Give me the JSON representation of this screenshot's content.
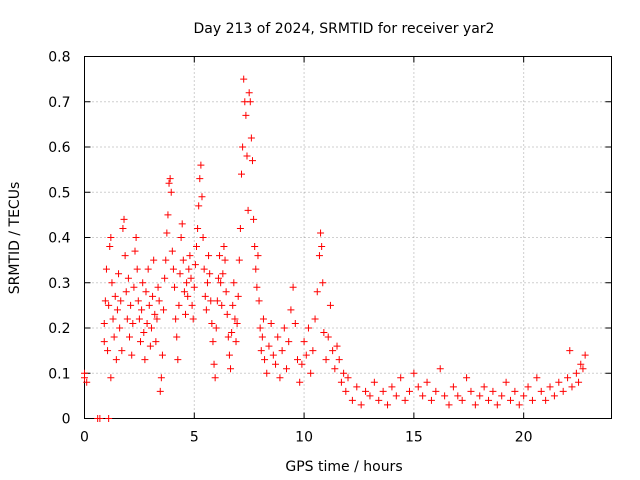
{
  "chart_data": {
    "type": "scatter",
    "title": "Day 213 of 2024, SRMTID for receiver yar2",
    "xlabel": "GPS time / hours",
    "ylabel": "SRMTID / TECUs",
    "xlim": [
      0,
      24
    ],
    "ylim": [
      0,
      0.8
    ],
    "x_ticks": [
      "0",
      "5",
      "10",
      "15",
      "20"
    ],
    "y_ticks": [
      "0",
      "0.1",
      "0.2",
      "0.3",
      "0.4",
      "0.5",
      "0.6",
      "0.7",
      "0.8"
    ],
    "grid": true,
    "marker": "+",
    "color": "#ff0000",
    "series": [
      {
        "name": "SRMTID",
        "points": [
          [
            0.0,
            0.1
          ],
          [
            0.0,
            0.09
          ],
          [
            0.1,
            0.08
          ],
          [
            0.6,
            0.0
          ],
          [
            0.7,
            0.0
          ],
          [
            1.1,
            0.0
          ],
          [
            0.9,
            0.17
          ],
          [
            0.9,
            0.21
          ],
          [
            0.95,
            0.26
          ],
          [
            1.0,
            0.33
          ],
          [
            1.05,
            0.15
          ],
          [
            1.1,
            0.25
          ],
          [
            1.15,
            0.38
          ],
          [
            1.2,
            0.4
          ],
          [
            1.2,
            0.09
          ],
          [
            1.25,
            0.3
          ],
          [
            1.3,
            0.22
          ],
          [
            1.35,
            0.18
          ],
          [
            1.4,
            0.27
          ],
          [
            1.45,
            0.13
          ],
          [
            1.5,
            0.24
          ],
          [
            1.55,
            0.32
          ],
          [
            1.6,
            0.2
          ],
          [
            1.65,
            0.26
          ],
          [
            1.7,
            0.15
          ],
          [
            1.75,
            0.42
          ],
          [
            1.8,
            0.44
          ],
          [
            1.85,
            0.36
          ],
          [
            1.9,
            0.28
          ],
          [
            1.95,
            0.22
          ],
          [
            2.0,
            0.31
          ],
          [
            2.05,
            0.18
          ],
          [
            2.1,
            0.25
          ],
          [
            2.15,
            0.14
          ],
          [
            2.2,
            0.21
          ],
          [
            2.25,
            0.29
          ],
          [
            2.3,
            0.37
          ],
          [
            2.35,
            0.4
          ],
          [
            2.4,
            0.33
          ],
          [
            2.45,
            0.26
          ],
          [
            2.5,
            0.22
          ],
          [
            2.55,
            0.17
          ],
          [
            2.6,
            0.24
          ],
          [
            2.65,
            0.3
          ],
          [
            2.7,
            0.19
          ],
          [
            2.75,
            0.13
          ],
          [
            2.8,
            0.28
          ],
          [
            2.85,
            0.21
          ],
          [
            2.9,
            0.33
          ],
          [
            2.95,
            0.25
          ],
          [
            3.0,
            0.16
          ],
          [
            3.05,
            0.2
          ],
          [
            3.1,
            0.27
          ],
          [
            3.15,
            0.35
          ],
          [
            3.2,
            0.23
          ],
          [
            3.25,
            0.17
          ],
          [
            3.3,
            0.22
          ],
          [
            3.35,
            0.29
          ],
          [
            3.4,
            0.26
          ],
          [
            3.45,
            0.06
          ],
          [
            3.5,
            0.09
          ],
          [
            3.55,
            0.14
          ],
          [
            3.6,
            0.24
          ],
          [
            3.65,
            0.31
          ],
          [
            3.7,
            0.35
          ],
          [
            3.75,
            0.41
          ],
          [
            3.8,
            0.45
          ],
          [
            3.85,
            0.52
          ],
          [
            3.9,
            0.53
          ],
          [
            3.95,
            0.5
          ],
          [
            4.0,
            0.37
          ],
          [
            4.05,
            0.33
          ],
          [
            4.1,
            0.29
          ],
          [
            4.15,
            0.22
          ],
          [
            4.2,
            0.18
          ],
          [
            4.25,
            0.13
          ],
          [
            4.3,
            0.25
          ],
          [
            4.35,
            0.32
          ],
          [
            4.4,
            0.4
          ],
          [
            4.45,
            0.43
          ],
          [
            4.5,
            0.35
          ],
          [
            4.55,
            0.28
          ],
          [
            4.6,
            0.23
          ],
          [
            4.65,
            0.3
          ],
          [
            4.7,
            0.27
          ],
          [
            4.75,
            0.33
          ],
          [
            4.8,
            0.36
          ],
          [
            4.85,
            0.31
          ],
          [
            4.9,
            0.25
          ],
          [
            4.95,
            0.22
          ],
          [
            5.0,
            0.29
          ],
          [
            5.05,
            0.34
          ],
          [
            5.1,
            0.38
          ],
          [
            5.15,
            0.42
          ],
          [
            5.2,
            0.47
          ],
          [
            5.25,
            0.53
          ],
          [
            5.3,
            0.56
          ],
          [
            5.35,
            0.49
          ],
          [
            5.4,
            0.4
          ],
          [
            5.45,
            0.33
          ],
          [
            5.5,
            0.27
          ],
          [
            5.55,
            0.24
          ],
          [
            5.6,
            0.3
          ],
          [
            5.65,
            0.36
          ],
          [
            5.7,
            0.32
          ],
          [
            5.75,
            0.26
          ],
          [
            5.8,
            0.21
          ],
          [
            5.85,
            0.17
          ],
          [
            5.9,
            0.12
          ],
          [
            5.95,
            0.09
          ],
          [
            6.0,
            0.2
          ],
          [
            6.05,
            0.26
          ],
          [
            6.1,
            0.31
          ],
          [
            6.15,
            0.36
          ],
          [
            6.2,
            0.3
          ],
          [
            6.25,
            0.25
          ],
          [
            6.3,
            0.32
          ],
          [
            6.35,
            0.38
          ],
          [
            6.4,
            0.35
          ],
          [
            6.45,
            0.28
          ],
          [
            6.5,
            0.23
          ],
          [
            6.55,
            0.18
          ],
          [
            6.6,
            0.14
          ],
          [
            6.65,
            0.11
          ],
          [
            6.7,
            0.19
          ],
          [
            6.75,
            0.25
          ],
          [
            6.8,
            0.3
          ],
          [
            6.85,
            0.22
          ],
          [
            6.9,
            0.17
          ],
          [
            6.95,
            0.21
          ],
          [
            7.0,
            0.27
          ],
          [
            7.05,
            0.35
          ],
          [
            7.1,
            0.42
          ],
          [
            7.15,
            0.54
          ],
          [
            7.2,
            0.6
          ],
          [
            7.25,
            0.75
          ],
          [
            7.3,
            0.7
          ],
          [
            7.35,
            0.67
          ],
          [
            7.4,
            0.58
          ],
          [
            7.45,
            0.46
          ],
          [
            7.5,
            0.72
          ],
          [
            7.55,
            0.7
          ],
          [
            7.6,
            0.62
          ],
          [
            7.65,
            0.57
          ],
          [
            7.7,
            0.44
          ],
          [
            7.75,
            0.38
          ],
          [
            7.8,
            0.33
          ],
          [
            7.85,
            0.29
          ],
          [
            7.9,
            0.36
          ],
          [
            7.95,
            0.26
          ],
          [
            8.0,
            0.2
          ],
          [
            8.05,
            0.15
          ],
          [
            8.1,
            0.18
          ],
          [
            8.15,
            0.22
          ],
          [
            8.2,
            0.13
          ],
          [
            8.3,
            0.1
          ],
          [
            8.4,
            0.16
          ],
          [
            8.5,
            0.21
          ],
          [
            8.6,
            0.14
          ],
          [
            8.7,
            0.12
          ],
          [
            8.8,
            0.18
          ],
          [
            8.9,
            0.09
          ],
          [
            9.0,
            0.15
          ],
          [
            9.1,
            0.2
          ],
          [
            9.2,
            0.11
          ],
          [
            9.3,
            0.17
          ],
          [
            9.4,
            0.24
          ],
          [
            9.5,
            0.29
          ],
          [
            9.6,
            0.21
          ],
          [
            9.7,
            0.13
          ],
          [
            9.8,
            0.08
          ],
          [
            9.9,
            0.12
          ],
          [
            10.0,
            0.17
          ],
          [
            10.1,
            0.14
          ],
          [
            10.2,
            0.2
          ],
          [
            10.3,
            0.1
          ],
          [
            10.4,
            0.15
          ],
          [
            10.5,
            0.22
          ],
          [
            10.6,
            0.28
          ],
          [
            10.7,
            0.36
          ],
          [
            10.75,
            0.41
          ],
          [
            10.8,
            0.38
          ],
          [
            10.85,
            0.3
          ],
          [
            10.9,
            0.19
          ],
          [
            11.0,
            0.13
          ],
          [
            11.1,
            0.18
          ],
          [
            11.2,
            0.25
          ],
          [
            11.3,
            0.15
          ],
          [
            11.4,
            0.11
          ],
          [
            11.5,
            0.16
          ],
          [
            11.6,
            0.13
          ],
          [
            11.7,
            0.08
          ],
          [
            11.8,
            0.1
          ],
          [
            11.9,
            0.06
          ],
          [
            12.0,
            0.09
          ],
          [
            12.2,
            0.04
          ],
          [
            12.4,
            0.07
          ],
          [
            12.6,
            0.03
          ],
          [
            12.8,
            0.06
          ],
          [
            13.0,
            0.05
          ],
          [
            13.2,
            0.08
          ],
          [
            13.4,
            0.04
          ],
          [
            13.6,
            0.06
          ],
          [
            13.8,
            0.03
          ],
          [
            14.0,
            0.07
          ],
          [
            14.2,
            0.05
          ],
          [
            14.4,
            0.09
          ],
          [
            14.6,
            0.04
          ],
          [
            14.8,
            0.06
          ],
          [
            15.0,
            0.1
          ],
          [
            15.2,
            0.07
          ],
          [
            15.4,
            0.05
          ],
          [
            15.6,
            0.08
          ],
          [
            15.8,
            0.04
          ],
          [
            16.0,
            0.06
          ],
          [
            16.2,
            0.11
          ],
          [
            16.4,
            0.05
          ],
          [
            16.6,
            0.03
          ],
          [
            16.8,
            0.07
          ],
          [
            17.0,
            0.05
          ],
          [
            17.2,
            0.04
          ],
          [
            17.4,
            0.09
          ],
          [
            17.6,
            0.06
          ],
          [
            17.8,
            0.03
          ],
          [
            18.0,
            0.05
          ],
          [
            18.2,
            0.07
          ],
          [
            18.4,
            0.04
          ],
          [
            18.6,
            0.06
          ],
          [
            18.8,
            0.03
          ],
          [
            19.0,
            0.05
          ],
          [
            19.2,
            0.08
          ],
          [
            19.4,
            0.04
          ],
          [
            19.6,
            0.06
          ],
          [
            19.8,
            0.03
          ],
          [
            20.0,
            0.05
          ],
          [
            20.2,
            0.07
          ],
          [
            20.4,
            0.04
          ],
          [
            20.6,
            0.09
          ],
          [
            20.8,
            0.06
          ],
          [
            21.0,
            0.04
          ],
          [
            21.2,
            0.07
          ],
          [
            21.4,
            0.05
          ],
          [
            21.6,
            0.08
          ],
          [
            21.8,
            0.06
          ],
          [
            22.0,
            0.09
          ],
          [
            22.1,
            0.15
          ],
          [
            22.2,
            0.07
          ],
          [
            22.4,
            0.1
          ],
          [
            22.5,
            0.08
          ],
          [
            22.6,
            0.12
          ],
          [
            22.7,
            0.11
          ],
          [
            22.8,
            0.14
          ]
        ]
      }
    ]
  }
}
